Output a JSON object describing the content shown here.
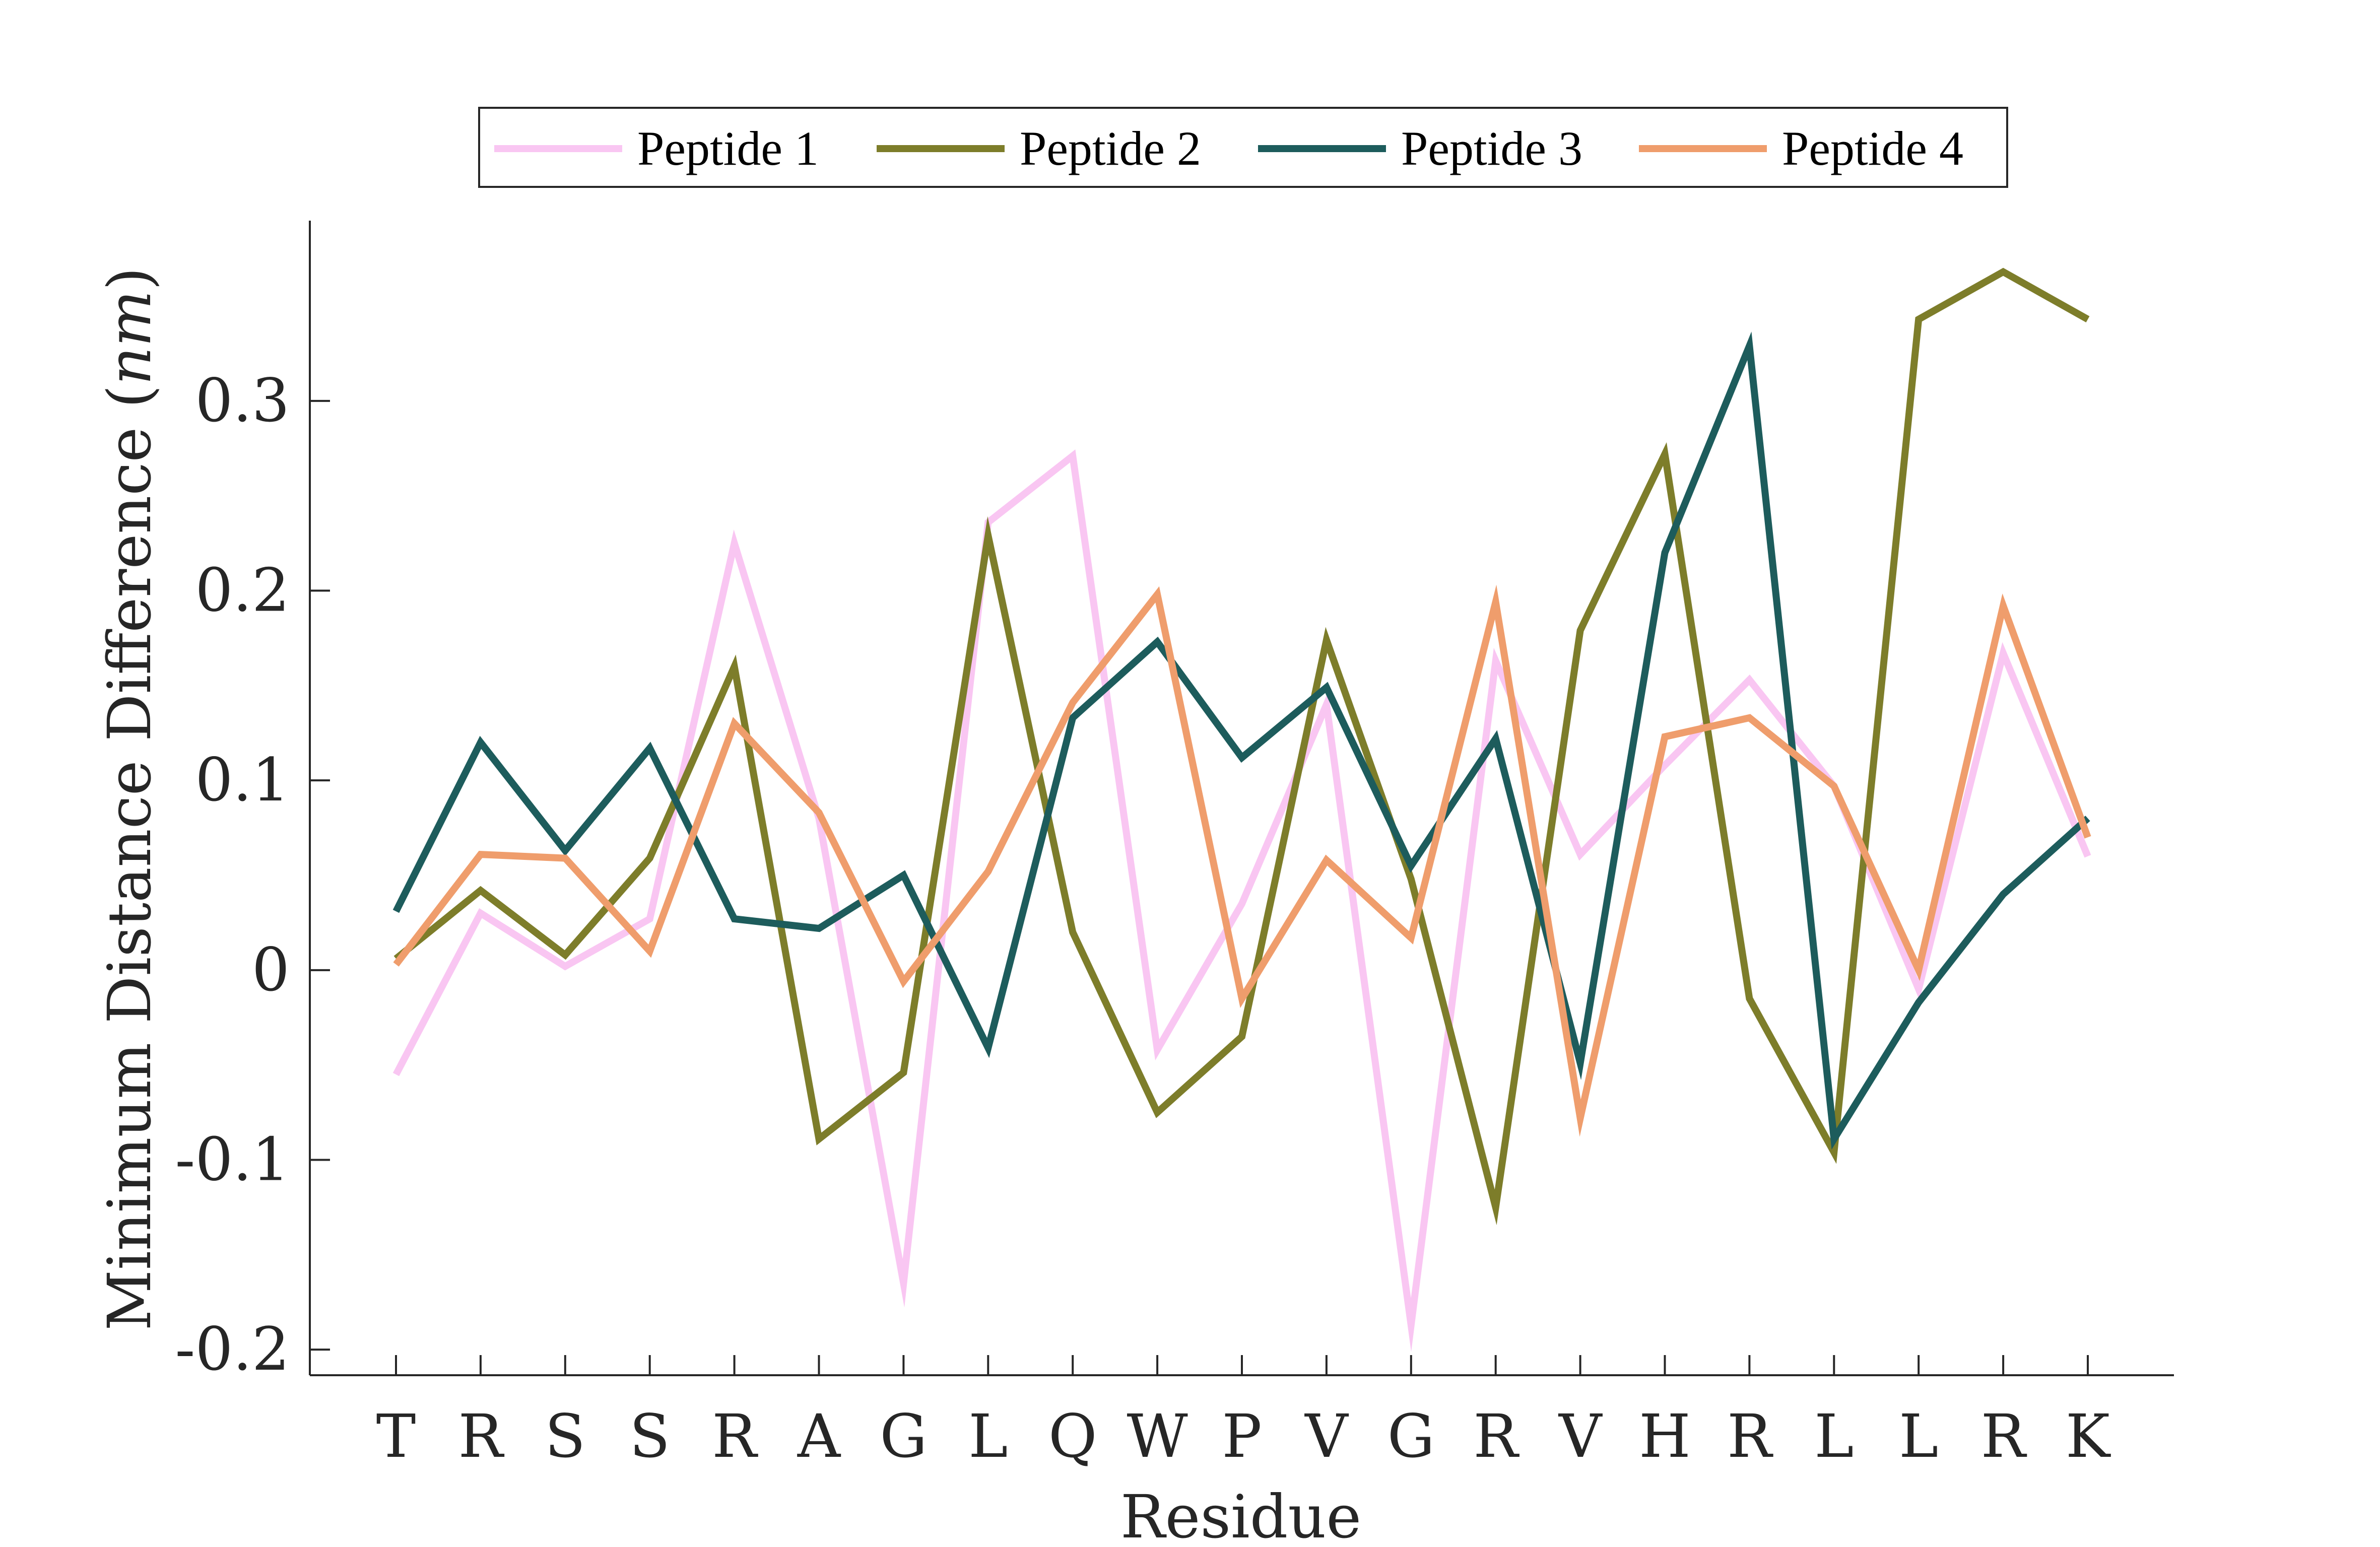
{
  "chart_data": {
    "type": "line",
    "title": "",
    "xlabel": "Residue",
    "ylabel": "Minimum Distance Difference (",
    "ylabel_unit": "nm",
    "ylabel_close": ")",
    "categories": [
      "T",
      "R",
      "S",
      "S",
      "R",
      "A",
      "G",
      "L",
      "Q",
      "W",
      "P",
      "V",
      "G",
      "R",
      "V",
      "H",
      "R",
      "L",
      "L",
      "R",
      "K"
    ],
    "ylim": [
      -0.2135,
      0.395
    ],
    "yticks": [
      -0.2,
      -0.1,
      0,
      0.1,
      0.2,
      0.3
    ],
    "ytick_labels": [
      "-0.2",
      "-0.1",
      "0",
      "0.1",
      "0.2",
      "0.3"
    ],
    "grid": false,
    "legend_position": "top-center, outside plot",
    "series": [
      {
        "name": "Peptide 1",
        "color": "#f9c6f2",
        "values": [
          -0.055,
          0.03,
          0.002,
          0.027,
          0.225,
          0.08,
          -0.165,
          0.236,
          0.271,
          -0.042,
          0.035,
          0.14,
          -0.187,
          0.163,
          0.061,
          0.108,
          0.153,
          0.097,
          -0.01,
          0.167,
          0.06
        ]
      },
      {
        "name": "Peptide 2",
        "color": "#7d7d2a",
        "values": [
          0.006,
          0.042,
          0.008,
          0.059,
          0.16,
          -0.089,
          -0.054,
          0.229,
          0.02,
          -0.075,
          -0.035,
          0.174,
          0.048,
          -0.125,
          0.179,
          0.272,
          -0.015,
          -0.096,
          0.343,
          0.368,
          0.343
        ]
      },
      {
        "name": "Peptide 3",
        "color": "#1d5c5c",
        "values": [
          0.031,
          0.12,
          0.063,
          0.117,
          0.027,
          0.022,
          0.05,
          -0.041,
          0.133,
          0.173,
          0.112,
          0.149,
          0.055,
          0.122,
          -0.049,
          0.22,
          0.329,
          -0.089,
          -0.017,
          0.04,
          0.08
        ]
      },
      {
        "name": "Peptide 4",
        "color": "#ef9d6c",
        "values": [
          0.003,
          0.061,
          0.059,
          0.01,
          0.13,
          0.083,
          -0.006,
          0.052,
          0.141,
          0.198,
          -0.015,
          0.058,
          0.017,
          0.194,
          -0.078,
          0.123,
          0.133,
          0.097,
          0.0,
          0.192,
          0.07
        ]
      }
    ]
  }
}
